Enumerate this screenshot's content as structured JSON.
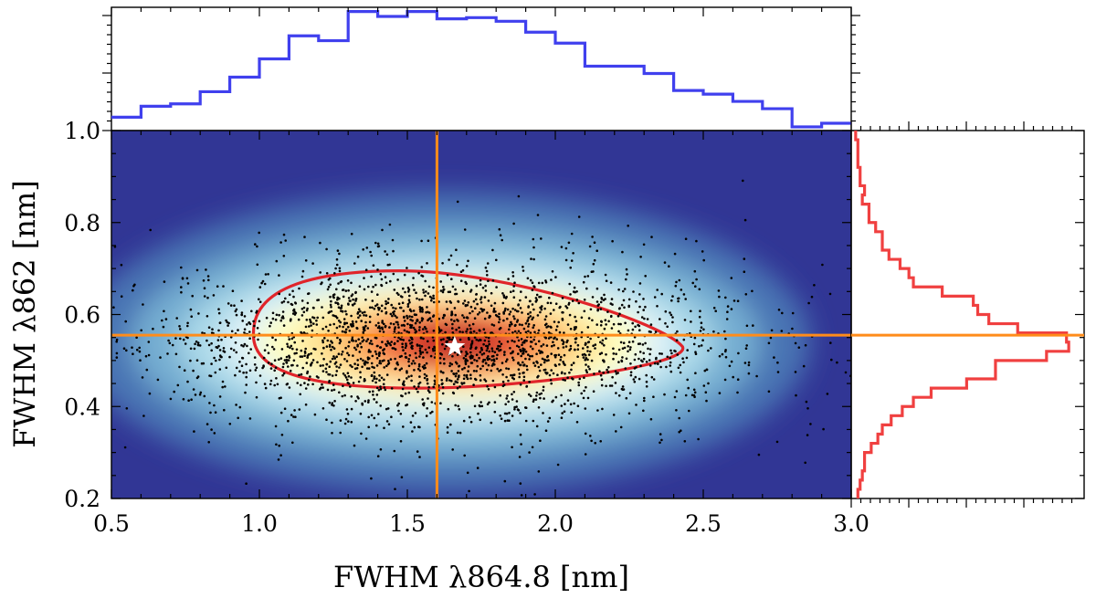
{
  "chart_data": {
    "type": "scatter",
    "title": "",
    "xlabel": "FWHM λ864.8 [nm]",
    "ylabel": "FWHM λ862 [nm]",
    "xlim": [
      0.5,
      3.0
    ],
    "ylim": [
      0.2,
      1.0
    ],
    "xticks": [
      "0.5",
      "1.0",
      "1.5",
      "2.0",
      "2.5",
      "3.0"
    ],
    "yticks": [
      "0.2",
      "0.4",
      "0.6",
      "0.8",
      "1.0"
    ],
    "reference_lines": {
      "x": 1.6,
      "y": 0.555,
      "color": "#ff8c1a"
    },
    "peak_marker": {
      "x": 1.66,
      "y": 0.53,
      "marker": "star",
      "color": "#ffffff"
    },
    "density": {
      "center_x": 1.65,
      "center_y": 0.54,
      "colormap": "RdYlBu_r",
      "contour_color": "#e0242a",
      "contour_x_range": [
        0.98,
        2.43
      ],
      "contour_y_range": [
        0.44,
        0.695
      ]
    },
    "scatter": {
      "n_points": 2600,
      "color": "#000000"
    },
    "top_histogram": {
      "color": "#4040ee",
      "bin_edges": [
        0.5,
        0.6,
        0.7,
        0.8,
        0.9,
        1.0,
        1.1,
        1.2,
        1.3,
        1.4,
        1.5,
        1.6,
        1.7,
        1.8,
        1.9,
        2.0,
        2.1,
        2.2,
        2.3,
        2.4,
        2.5,
        2.6,
        2.7,
        2.8,
        2.9,
        3.0
      ],
      "counts": [
        0.11,
        0.2,
        0.22,
        0.32,
        0.44,
        0.59,
        0.78,
        0.74,
        0.98,
        0.94,
        0.98,
        0.92,
        0.93,
        0.9,
        0.81,
        0.72,
        0.53,
        0.53,
        0.47,
        0.33,
        0.3,
        0.24,
        0.18,
        0.03,
        0.06
      ],
      "ymax": 1.0
    },
    "right_histogram": {
      "color": "#f04040",
      "bin_edges": [
        0.2,
        0.22,
        0.24,
        0.26,
        0.28,
        0.3,
        0.32,
        0.34,
        0.36,
        0.38,
        0.4,
        0.42,
        0.44,
        0.46,
        0.48,
        0.5,
        0.52,
        0.54,
        0.56,
        0.58,
        0.6,
        0.62,
        0.64,
        0.66,
        0.68,
        0.7,
        0.72,
        0.74,
        0.76,
        0.78,
        0.8,
        0.82,
        0.84,
        0.86,
        0.88,
        0.9,
        0.92,
        0.94,
        0.96,
        0.98,
        1.0
      ],
      "counts": [
        0.03,
        0.04,
        0.05,
        0.06,
        0.06,
        0.09,
        0.12,
        0.14,
        0.18,
        0.23,
        0.28,
        0.36,
        0.52,
        0.65,
        0.65,
        0.88,
        0.98,
        0.97,
        0.75,
        0.62,
        0.57,
        0.55,
        0.41,
        0.28,
        0.26,
        0.22,
        0.17,
        0.14,
        0.14,
        0.11,
        0.08,
        0.08,
        0.05,
        0.06,
        0.04,
        0.04,
        0.03,
        0.03,
        0.03,
        0.02
      ],
      "xmax": 1.0
    }
  }
}
